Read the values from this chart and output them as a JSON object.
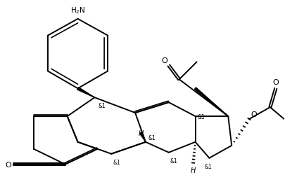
{
  "figsize": [
    4.05,
    2.51
  ],
  "dpi": 100,
  "bg": "#ffffff",
  "lc": "black",
  "lw": 1.4,
  "xlim": [
    0,
    10
  ],
  "ylim": [
    0,
    6.2
  ]
}
